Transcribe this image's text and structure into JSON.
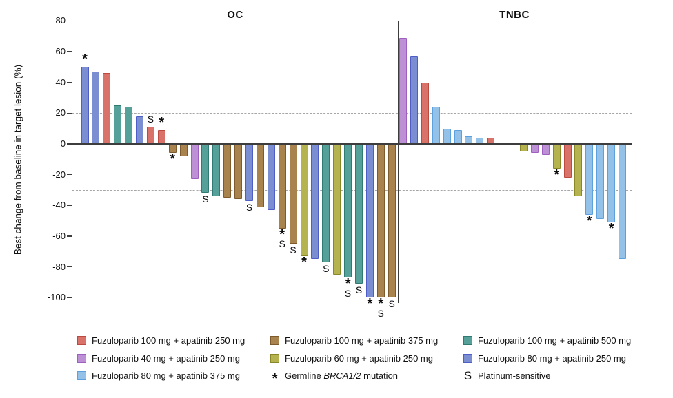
{
  "chart_data": {
    "type": "bar",
    "subtype": "waterfall",
    "ylabel": "Best change from baseline in target lesion (%)",
    "ylim": [
      -100,
      80
    ],
    "yticks": [
      80,
      60,
      40,
      20,
      0,
      -20,
      -40,
      -60,
      -80,
      -100
    ],
    "reference_lines": [
      20,
      -30
    ],
    "grid": "off",
    "legend_position": "bottom",
    "groups": {
      "red": {
        "label": "Fuzuloparib 100 mg + apatinib 250 mg",
        "fill": "#d9736a",
        "stroke": "#bc4a41"
      },
      "purple": {
        "label": "Fuzuloparib 40 mg + apatinib 250 mg",
        "fill": "#bd8fd5",
        "stroke": "#9e5fc0"
      },
      "lightblue": {
        "label": "Fuzuloparib 80 mg + apatinib 375 mg",
        "fill": "#94c1e8",
        "stroke": "#5ca0dc"
      },
      "brown": {
        "label": "Fuzuloparib 100 mg + apatinib 375 mg",
        "fill": "#a8834e",
        "stroke": "#7d5b2d"
      },
      "olive": {
        "label": "Fuzuloparib 60 mg + apatinib 250 mg",
        "fill": "#b5b250",
        "stroke": "#8a8727"
      },
      "teal": {
        "label": "Fuzuloparib 100 mg + apatinib 500 mg",
        "fill": "#55a098",
        "stroke": "#2f7a72"
      },
      "blue": {
        "label": "Fuzuloparib 80 mg + apatinib 250 mg",
        "fill": "#7c8ed2",
        "stroke": "#4f5ec7"
      }
    },
    "marker_defs": {
      "*": "Germline BRCA1/2 mutation",
      "S": "Platinum-sensitive"
    },
    "panels": [
      {
        "title": "OC",
        "bars": [
          {
            "value": 50,
            "group": "blue",
            "markers": [
              "*"
            ]
          },
          {
            "value": 47,
            "group": "blue",
            "markers": []
          },
          {
            "value": 46,
            "group": "red",
            "markers": []
          },
          {
            "value": 25,
            "group": "teal",
            "markers": []
          },
          {
            "value": 24,
            "group": "teal",
            "markers": []
          },
          {
            "value": 18,
            "group": "blue",
            "markers": []
          },
          {
            "value": 11,
            "group": "red",
            "markers": [
              "S"
            ]
          },
          {
            "value": 9,
            "group": "red",
            "markers": [
              "*"
            ]
          },
          {
            "value": -6,
            "group": "brown",
            "markers": [
              "*"
            ]
          },
          {
            "value": -8,
            "group": "brown",
            "markers": []
          },
          {
            "value": -23,
            "group": "purple",
            "markers": []
          },
          {
            "value": -32,
            "group": "teal",
            "markers": [
              "S"
            ]
          },
          {
            "value": -34,
            "group": "teal",
            "markers": []
          },
          {
            "value": -35,
            "group": "brown",
            "markers": []
          },
          {
            "value": -36,
            "group": "brown",
            "markers": []
          },
          {
            "value": -37,
            "group": "blue",
            "markers": [
              "S"
            ]
          },
          {
            "value": -41,
            "group": "brown",
            "markers": []
          },
          {
            "value": -43,
            "group": "blue",
            "markers": []
          },
          {
            "value": -55,
            "group": "brown",
            "markers": [
              "*",
              "S"
            ]
          },
          {
            "value": -65,
            "group": "brown",
            "markers": [
              "S"
            ]
          },
          {
            "value": -73,
            "group": "olive",
            "markers": [
              "*"
            ]
          },
          {
            "value": -75,
            "group": "blue",
            "markers": []
          },
          {
            "value": -77,
            "group": "teal",
            "markers": [
              "S"
            ]
          },
          {
            "value": -85,
            "group": "olive",
            "markers": []
          },
          {
            "value": -87,
            "group": "teal",
            "markers": [
              "*",
              "S"
            ]
          },
          {
            "value": -91,
            "group": "teal",
            "markers": [
              "S"
            ]
          },
          {
            "value": -100,
            "group": "blue",
            "markers": [
              "*"
            ]
          },
          {
            "value": -100,
            "group": "brown",
            "markers": [
              "*",
              "S"
            ]
          },
          {
            "value": -100,
            "group": "brown",
            "markers": [
              "S"
            ]
          }
        ]
      },
      {
        "title": "TNBC",
        "bars": [
          {
            "value": 69,
            "group": "purple",
            "markers": []
          },
          {
            "value": 57,
            "group": "blue",
            "markers": []
          },
          {
            "value": 40,
            "group": "red",
            "markers": []
          },
          {
            "value": 24,
            "group": "lightblue",
            "markers": []
          },
          {
            "value": 10,
            "group": "lightblue",
            "markers": []
          },
          {
            "value": 9,
            "group": "lightblue",
            "markers": []
          },
          {
            "value": 5,
            "group": "lightblue",
            "markers": []
          },
          {
            "value": 4,
            "group": "lightblue",
            "markers": []
          },
          {
            "value": 4,
            "group": "red",
            "markers": []
          },
          {
            "value": 0,
            "group": null,
            "markers": []
          },
          {
            "value": 0,
            "group": null,
            "markers": []
          },
          {
            "value": -5,
            "group": "olive",
            "markers": []
          },
          {
            "value": -6,
            "group": "purple",
            "markers": []
          },
          {
            "value": -7,
            "group": "purple",
            "markers": []
          },
          {
            "value": -16,
            "group": "olive",
            "markers": [
              "*"
            ]
          },
          {
            "value": -22,
            "group": "red",
            "markers": []
          },
          {
            "value": -34,
            "group": "olive",
            "markers": []
          },
          {
            "value": -46,
            "group": "lightblue",
            "markers": [
              "*"
            ]
          },
          {
            "value": -49,
            "group": "lightblue",
            "markers": []
          },
          {
            "value": -51,
            "group": "lightblue",
            "markers": [
              "*"
            ]
          },
          {
            "value": -75,
            "group": "lightblue",
            "markers": []
          }
        ]
      }
    ],
    "legend": {
      "items": [
        {
          "swatch": "red"
        },
        {
          "swatch": "purple"
        },
        {
          "swatch": "lightblue"
        },
        {
          "swatch": "brown"
        },
        {
          "swatch": "olive"
        },
        {
          "symbol": "*",
          "label_parts": {
            "pre": "Germline ",
            "italic": "BRCA1/2",
            "post": " mutation"
          }
        },
        {
          "swatch": "teal"
        },
        {
          "swatch": "blue"
        },
        {
          "symbol": "S",
          "label": "Platinum-sensitive"
        }
      ]
    }
  }
}
